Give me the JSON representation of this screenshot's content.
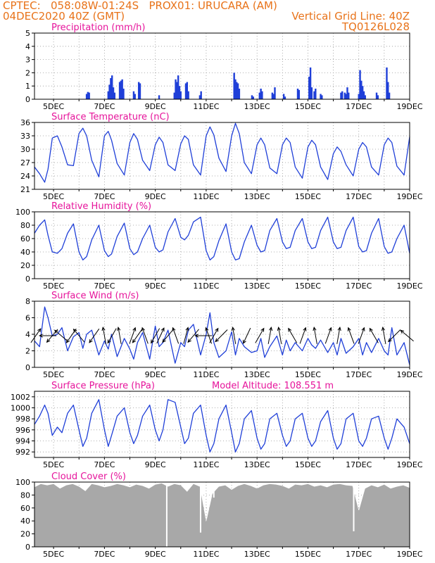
{
  "header": {
    "line1_left": "CPTEC:   058:08W-01:24S   PROX01: URUCARA (AM)",
    "line2_left": "04DEC2020 40Z (GMT)",
    "line2_right": "Vertical Grid Line: 40Z",
    "line3_right": "TQ0126L028"
  },
  "colors": {
    "header": "#e8731a",
    "panel_title": "#e6149b",
    "line": "#1f3fd8",
    "bar": "#1f3fd8",
    "cloud": "#a8a8a8",
    "arrow": "#000000"
  },
  "chart_data": [
    {
      "type": "bar",
      "title": "Precipitation (mm/h)",
      "x_tick_labels": [
        "5DEC",
        "7DEC",
        "9DEC",
        "11DEC",
        "13DEC",
        "15DEC",
        "17DEC",
        "19DEC"
      ],
      "x_range_days": [
        4.25,
        19.0
      ],
      "ylim": [
        0,
        5
      ],
      "y_ticks": [
        0,
        1,
        2,
        3,
        4,
        5
      ],
      "bars": [
        [
          6.3,
          0.4
        ],
        [
          6.35,
          0.55
        ],
        [
          6.4,
          0.5
        ],
        [
          7.15,
          0.6
        ],
        [
          7.2,
          1.1
        ],
        [
          7.25,
          1.6
        ],
        [
          7.3,
          1.8
        ],
        [
          7.35,
          0.9
        ],
        [
          7.4,
          0.5
        ],
        [
          7.6,
          1.3
        ],
        [
          7.65,
          1.4
        ],
        [
          7.7,
          1.5
        ],
        [
          7.75,
          0.8
        ],
        [
          8.15,
          0.6
        ],
        [
          8.2,
          0.4
        ],
        [
          8.35,
          1.3
        ],
        [
          8.4,
          1.2
        ],
        [
          9.15,
          0.3
        ],
        [
          9.75,
          0.5
        ],
        [
          9.8,
          1.5
        ],
        [
          9.85,
          1.3
        ],
        [
          9.9,
          1.8
        ],
        [
          9.95,
          1.0
        ],
        [
          10.0,
          0.6
        ],
        [
          10.2,
          1.2
        ],
        [
          10.25,
          1.3
        ],
        [
          10.3,
          0.6
        ],
        [
          10.75,
          0.3
        ],
        [
          10.8,
          0.6
        ],
        [
          12.1,
          2.0
        ],
        [
          12.15,
          1.5
        ],
        [
          12.2,
          1.3
        ],
        [
          12.25,
          1.2
        ],
        [
          12.3,
          0.8
        ],
        [
          12.8,
          0.3
        ],
        [
          12.85,
          0.2
        ],
        [
          13.1,
          0.5
        ],
        [
          13.15,
          0.8
        ],
        [
          13.2,
          0.6
        ],
        [
          13.6,
          0.5
        ],
        [
          13.65,
          0.4
        ],
        [
          13.7,
          0.9
        ],
        [
          14.05,
          0.4
        ],
        [
          14.1,
          0.2
        ],
        [
          14.6,
          0.8
        ],
        [
          14.65,
          0.7
        ],
        [
          15.05,
          1.7
        ],
        [
          15.1,
          2.4
        ],
        [
          15.15,
          0.9
        ],
        [
          15.25,
          0.6
        ],
        [
          15.3,
          0.8
        ],
        [
          15.5,
          0.4
        ],
        [
          15.55,
          0.3
        ],
        [
          16.3,
          0.5
        ],
        [
          16.35,
          0.6
        ],
        [
          16.45,
          0.5
        ],
        [
          16.5,
          0.4
        ],
        [
          16.55,
          0.9
        ],
        [
          16.6,
          0.5
        ],
        [
          17.0,
          0.4
        ],
        [
          17.05,
          2.2
        ],
        [
          17.1,
          1.4
        ],
        [
          17.15,
          1.0
        ],
        [
          17.2,
          0.6
        ],
        [
          17.25,
          0.3
        ],
        [
          17.7,
          0.5
        ],
        [
          17.75,
          0.3
        ],
        [
          18.1,
          2.4
        ],
        [
          18.15,
          1.3
        ],
        [
          18.2,
          0.5
        ]
      ]
    },
    {
      "type": "line",
      "title": "Surface Temperature (nC)",
      "x_tick_labels": [
        "5DEC",
        "7DEC",
        "9DEC",
        "11DEC",
        "13DEC",
        "15DEC",
        "17DEC",
        "19DEC"
      ],
      "x_range_days": [
        4.25,
        19.0
      ],
      "ylim": [
        21,
        36
      ],
      "y_ticks": [
        21,
        24,
        27,
        30,
        33,
        36
      ],
      "x": [
        4.25,
        4.45,
        4.65,
        4.78,
        4.95,
        5.15,
        5.33,
        5.55,
        5.78,
        6.0,
        6.15,
        6.3,
        6.5,
        6.78,
        7.0,
        7.15,
        7.28,
        7.5,
        7.78,
        8.0,
        8.15,
        8.3,
        8.5,
        8.78,
        9.0,
        9.15,
        9.3,
        9.5,
        9.78,
        10.0,
        10.15,
        10.3,
        10.5,
        10.78,
        11.0,
        11.15,
        11.3,
        11.5,
        11.78,
        12.0,
        12.15,
        12.3,
        12.5,
        12.78,
        13.0,
        13.15,
        13.3,
        13.5,
        13.78,
        14.0,
        14.15,
        14.3,
        14.5,
        14.78,
        15.0,
        15.15,
        15.3,
        15.5,
        15.78,
        16.0,
        16.15,
        16.3,
        16.5,
        16.78,
        17.0,
        17.15,
        17.3,
        17.5,
        17.78,
        18.0,
        18.15,
        18.3,
        18.5,
        18.78,
        19.0
      ],
      "values": [
        26,
        24.5,
        22.6,
        25.5,
        32.5,
        33,
        30.5,
        26.5,
        26.3,
        33.5,
        34.7,
        33,
        27.5,
        23.8,
        33,
        34,
        32,
        26.8,
        24.2,
        31.5,
        33.5,
        32.2,
        27.5,
        25.2,
        31,
        32.7,
        31.5,
        26.5,
        25.2,
        31.2,
        33,
        32.2,
        26.5,
        24.2,
        33,
        35,
        33.2,
        28,
        25,
        33,
        35.8,
        33.5,
        27,
        24.5,
        31,
        32.5,
        31,
        25.8,
        24.5,
        31,
        32.5,
        31.5,
        26,
        23.5,
        30.5,
        32,
        31,
        26,
        23.2,
        29,
        30.5,
        29.5,
        26.5,
        24,
        30,
        31.5,
        30.5,
        26,
        24.2,
        31,
        32.5,
        31.5,
        26.2,
        24.2,
        32.8
      ]
    },
    {
      "type": "line",
      "title": "Relative Humidity (%)",
      "x_tick_labels": [
        "5DEC",
        "7DEC",
        "9DEC",
        "11DEC",
        "13DEC",
        "15DEC",
        "17DEC",
        "19DEC"
      ],
      "x_range_days": [
        4.25,
        19.0
      ],
      "ylim": [
        0,
        100
      ],
      "y_ticks": [
        0,
        20,
        40,
        60,
        80,
        100
      ],
      "x": [
        4.25,
        4.45,
        4.65,
        4.78,
        4.95,
        5.15,
        5.33,
        5.55,
        5.78,
        6.0,
        6.15,
        6.3,
        6.5,
        6.78,
        7.0,
        7.15,
        7.28,
        7.5,
        7.78,
        8.0,
        8.15,
        8.3,
        8.5,
        8.78,
        9.0,
        9.15,
        9.3,
        9.5,
        9.78,
        10.0,
        10.15,
        10.3,
        10.5,
        10.78,
        11.0,
        11.15,
        11.3,
        11.5,
        11.78,
        12.0,
        12.15,
        12.3,
        12.5,
        12.78,
        13.0,
        13.15,
        13.3,
        13.5,
        13.78,
        14.0,
        14.15,
        14.3,
        14.5,
        14.78,
        15.0,
        15.15,
        15.3,
        15.5,
        15.78,
        16.0,
        16.15,
        16.3,
        16.5,
        16.78,
        17.0,
        17.15,
        17.3,
        17.5,
        17.78,
        18.0,
        18.15,
        18.3,
        18.5,
        18.78,
        19.0
      ],
      "values": [
        68,
        80,
        88,
        65,
        40,
        38,
        45,
        68,
        82,
        40,
        28,
        33,
        58,
        80,
        42,
        33,
        37,
        63,
        83,
        45,
        36,
        40,
        60,
        80,
        47,
        40,
        43,
        70,
        90,
        62,
        58,
        65,
        85,
        92,
        42,
        28,
        33,
        57,
        82,
        40,
        28,
        30,
        55,
        80,
        50,
        40,
        42,
        72,
        90,
        55,
        45,
        47,
        72,
        90,
        55,
        45,
        47,
        72,
        92,
        55,
        45,
        47,
        72,
        92,
        48,
        40,
        42,
        68,
        90,
        48,
        38,
        40,
        60,
        80,
        38
      ]
    },
    {
      "type": "line",
      "title": "Surface Wind (m/s)",
      "x_tick_labels": [
        "5DEC",
        "7DEC",
        "9DEC",
        "11DEC",
        "13DEC",
        "15DEC",
        "17DEC",
        "19DEC"
      ],
      "x_range_days": [
        4.25,
        19.0
      ],
      "ylim": [
        0,
        8
      ],
      "y_ticks": [
        0,
        2,
        4,
        6,
        8
      ],
      "x": [
        4.25,
        4.45,
        4.65,
        4.78,
        4.95,
        5.15,
        5.33,
        5.55,
        5.78,
        6.0,
        6.15,
        6.3,
        6.5,
        6.78,
        7.0,
        7.15,
        7.28,
        7.5,
        7.78,
        8.0,
        8.15,
        8.3,
        8.5,
        8.78,
        9.0,
        9.15,
        9.3,
        9.5,
        9.78,
        10.0,
        10.15,
        10.3,
        10.5,
        10.78,
        11.0,
        11.15,
        11.3,
        11.5,
        11.78,
        12.0,
        12.15,
        12.3,
        12.5,
        12.78,
        13.0,
        13.15,
        13.3,
        13.5,
        13.78,
        14.0,
        14.15,
        14.3,
        14.5,
        14.78,
        15.0,
        15.15,
        15.3,
        15.5,
        15.78,
        16.0,
        16.15,
        16.3,
        16.5,
        16.78,
        17.0,
        17.15,
        17.3,
        17.5,
        17.78,
        18.0,
        18.15,
        18.3,
        18.5,
        18.78,
        19.0
      ],
      "values": [
        3.2,
        2.5,
        7.3,
        6.0,
        3.8,
        4.0,
        4.8,
        2.0,
        3.7,
        4.2,
        2.3,
        4.0,
        4.5,
        1.5,
        3.2,
        2.2,
        4.0,
        1.3,
        3.5,
        2.2,
        1.0,
        3.0,
        4.2,
        1.0,
        5.0,
        2.5,
        3.0,
        4.5,
        0.5,
        3.0,
        2.5,
        4.5,
        5.2,
        1.5,
        4.0,
        6.6,
        3.0,
        1.2,
        2.0,
        4.3,
        1.5,
        3.5,
        2.5,
        1.8,
        2.0,
        3.5,
        1.2,
        2.5,
        3.8,
        1.5,
        3.3,
        2.0,
        3.0,
        2.0,
        3.5,
        2.7,
        2.3,
        3.3,
        1.8,
        3.0,
        1.5,
        3.5,
        1.7,
        2.5,
        3.5,
        1.5,
        3.0,
        1.8,
        3.5,
        2.0,
        1.5,
        4.8,
        1.5,
        3.0,
        0.3
      ],
      "arrows": [
        [
          4.3,
          55
        ],
        [
          4.78,
          180
        ],
        [
          4.95,
          230
        ],
        [
          5.3,
          140
        ],
        [
          5.7,
          235
        ],
        [
          6.0,
          130
        ],
        [
          6.6,
          235
        ],
        [
          7.0,
          100
        ],
        [
          7.3,
          240
        ],
        [
          7.6,
          100
        ],
        [
          8.1,
          70
        ],
        [
          8.3,
          235
        ],
        [
          8.6,
          110
        ],
        [
          9.0,
          240
        ],
        [
          9.2,
          65
        ],
        [
          9.5,
          230
        ],
        [
          9.8,
          110
        ],
        [
          10.2,
          75
        ],
        [
          10.5,
          230
        ],
        [
          10.9,
          180
        ],
        [
          11.1,
          110
        ],
        [
          11.3,
          60
        ],
        [
          11.6,
          225
        ],
        [
          12.1,
          100
        ],
        [
          12.6,
          245
        ],
        [
          13.1,
          60
        ],
        [
          13.5,
          80
        ],
        [
          13.9,
          100
        ],
        [
          14.4,
          120
        ],
        [
          14.8,
          70
        ],
        [
          15.3,
          100
        ],
        [
          15.8,
          70
        ],
        [
          16.2,
          80
        ],
        [
          16.7,
          110
        ],
        [
          17.1,
          70
        ],
        [
          17.6,
          120
        ],
        [
          18.0,
          100
        ],
        [
          18.4,
          225
        ],
        [
          18.9,
          140
        ]
      ]
    },
    {
      "type": "line",
      "title": "Surface Pressure (hPa)",
      "annotation": "Model Altitude: 108.551  m",
      "x_tick_labels": [
        "5DEC",
        "7DEC",
        "9DEC",
        "11DEC",
        "13DEC",
        "15DEC",
        "17DEC",
        "19DEC"
      ],
      "x_range_days": [
        4.25,
        19.0
      ],
      "ylim": [
        991,
        1003
      ],
      "y_ticks": [
        992,
        994,
        996,
        998,
        1000,
        1002
      ],
      "x": [
        4.25,
        4.45,
        4.65,
        4.78,
        4.95,
        5.15,
        5.33,
        5.55,
        5.78,
        6.0,
        6.15,
        6.3,
        6.5,
        6.78,
        7.0,
        7.15,
        7.28,
        7.5,
        7.78,
        8.0,
        8.15,
        8.3,
        8.5,
        8.78,
        9.0,
        9.15,
        9.3,
        9.5,
        9.78,
        10.0,
        10.15,
        10.3,
        10.5,
        10.78,
        11.0,
        11.15,
        11.3,
        11.5,
        11.78,
        12.0,
        12.15,
        12.3,
        12.5,
        12.78,
        13.0,
        13.15,
        13.3,
        13.5,
        13.78,
        14.0,
        14.15,
        14.3,
        14.5,
        14.78,
        15.0,
        15.15,
        15.3,
        15.5,
        15.78,
        16.0,
        16.15,
        16.3,
        16.5,
        16.78,
        17.0,
        17.15,
        17.3,
        17.5,
        17.78,
        18.0,
        18.15,
        18.3,
        18.5,
        18.78,
        19.0
      ],
      "values": [
        997.0,
        998.5,
        1000.5,
        999.0,
        995.0,
        996.5,
        995.5,
        999.0,
        1000.5,
        996.0,
        993.0,
        994.5,
        999.0,
        1001.5,
        996.0,
        993.0,
        995.0,
        998.5,
        1000.0,
        995.5,
        993.5,
        995.0,
        998.5,
        1000.5,
        996.0,
        994.0,
        996.0,
        1001.5,
        1001.0,
        996.5,
        993.5,
        994.5,
        999.0,
        1000.5,
        995.0,
        992.0,
        993.5,
        998.0,
        1000.5,
        995.5,
        992.0,
        993.5,
        998.0,
        999.5,
        994.5,
        992.5,
        993.5,
        998.0,
        999.0,
        995.0,
        993.0,
        994.0,
        998.0,
        999.0,
        994.5,
        993.0,
        994.0,
        997.5,
        999.5,
        994.5,
        992.5,
        993.5,
        998.0,
        999.0,
        994.0,
        993.0,
        994.5,
        998.0,
        998.5,
        994.5,
        992.5,
        994.5,
        998.0,
        996.5,
        993.5
      ]
    },
    {
      "type": "bar",
      "title": "Cloud Cover (%)",
      "x_tick_labels": [
        "5DEC",
        "7DEC",
        "9DEC",
        "11DEC",
        "13DEC",
        "15DEC",
        "17DEC",
        "19DEC"
      ],
      "x_range_days": [
        4.25,
        19.0
      ],
      "ylim": [
        0,
        100
      ],
      "y_ticks": [
        0,
        20,
        40,
        60,
        80,
        100
      ],
      "x": [
        4.25,
        4.5,
        4.75,
        5.0,
        5.25,
        5.5,
        5.75,
        6.0,
        6.25,
        6.5,
        6.75,
        7.0,
        7.25,
        7.5,
        7.75,
        8.0,
        8.25,
        8.5,
        8.75,
        9.0,
        9.25,
        9.5,
        9.75,
        10.0,
        10.25,
        10.5,
        10.75,
        11.0,
        11.25,
        11.5,
        11.75,
        12.0,
        12.25,
        12.5,
        12.75,
        13.0,
        13.25,
        13.5,
        13.75,
        14.0,
        14.25,
        14.5,
        14.75,
        15.0,
        15.25,
        15.5,
        15.75,
        16.0,
        16.25,
        16.5,
        16.75,
        17.0,
        17.25,
        17.5,
        17.75,
        18.0,
        18.25,
        18.5,
        18.75,
        19.0
      ],
      "values": [
        92,
        97,
        95,
        97,
        90,
        95,
        97,
        93,
        86,
        97,
        95,
        92,
        94,
        97,
        95,
        92,
        96,
        94,
        90,
        96,
        98,
        93,
        97,
        95,
        85,
        97,
        93,
        38,
        82,
        93,
        95,
        88,
        94,
        97,
        94,
        90,
        95,
        97,
        96,
        94,
        90,
        96,
        95,
        97,
        93,
        95,
        92,
        96,
        97,
        95,
        94,
        55,
        90,
        95,
        92,
        96,
        90,
        93,
        95,
        91
      ],
      "dips": [
        [
          9.45,
          0
        ],
        [
          10.78,
          22
        ],
        [
          10.95,
          60
        ],
        [
          11.3,
          76
        ],
        [
          16.8,
          24
        ]
      ]
    }
  ]
}
